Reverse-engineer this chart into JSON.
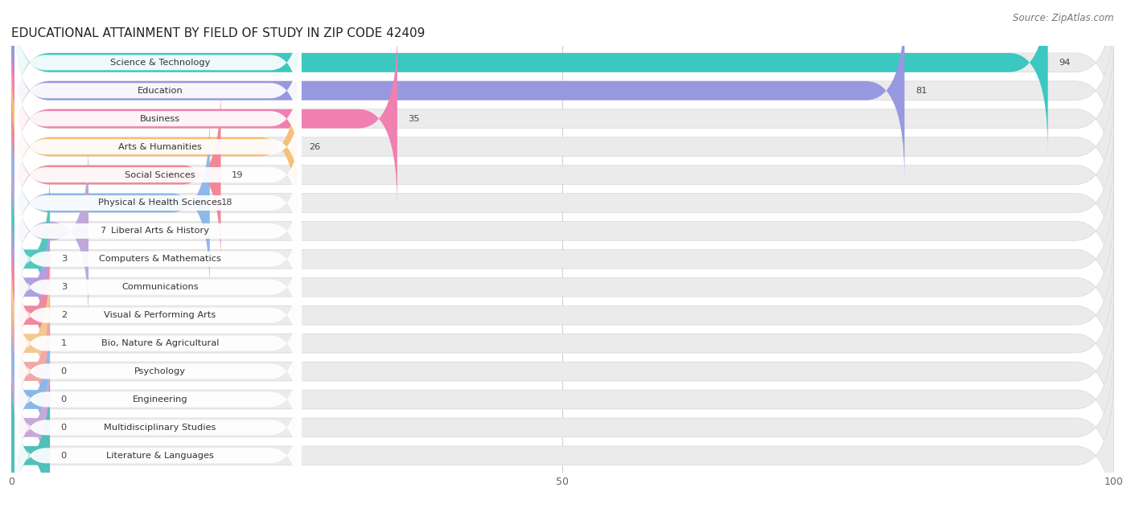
{
  "title": "EDUCATIONAL ATTAINMENT BY FIELD OF STUDY IN ZIP CODE 42409",
  "source": "Source: ZipAtlas.com",
  "categories": [
    "Science & Technology",
    "Education",
    "Business",
    "Arts & Humanities",
    "Social Sciences",
    "Physical & Health Sciences",
    "Liberal Arts & History",
    "Computers & Mathematics",
    "Communications",
    "Visual & Performing Arts",
    "Bio, Nature & Agricultural",
    "Psychology",
    "Engineering",
    "Multidisciplinary Studies",
    "Literature & Languages"
  ],
  "values": [
    94,
    81,
    35,
    26,
    19,
    18,
    7,
    3,
    3,
    2,
    1,
    0,
    0,
    0,
    0
  ],
  "bar_colors": [
    "#3ac8c0",
    "#9898e0",
    "#f080b0",
    "#f5c07a",
    "#f08898",
    "#90b8e8",
    "#c0a8d8",
    "#50c8c0",
    "#b0a0e0",
    "#f088a0",
    "#f5c890",
    "#f0a8a8",
    "#88b8e8",
    "#c8a8d8",
    "#50c0b8"
  ],
  "xlim": [
    0,
    100
  ],
  "background_color": "#ffffff",
  "bar_bg_color": "#ebebeb",
  "title_fontsize": 11,
  "source_fontsize": 8.5,
  "bar_height": 0.68,
  "bar_gap": 1.0
}
